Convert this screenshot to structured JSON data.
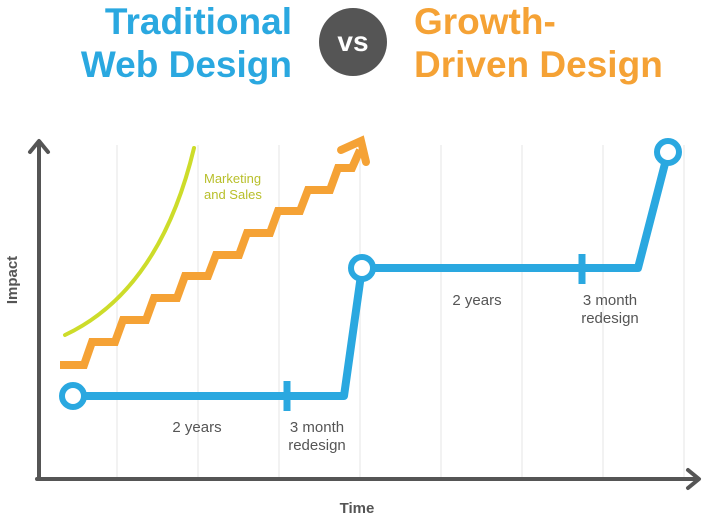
{
  "titles": {
    "left_line1": "Traditional",
    "left_line2": "Web Design",
    "vs": "vs",
    "right_line1": "Growth-",
    "right_line2": "Driven Design"
  },
  "axes": {
    "x_label": "Time",
    "y_label": "Impact"
  },
  "annotations": {
    "marketing_line1": "Marketing",
    "marketing_line2": "and Sales",
    "years_1": "2 years",
    "redesign_1_line1": "3 month",
    "redesign_1_line2": "redesign",
    "years_2": "2 years",
    "redesign_2_line1": "3 month",
    "redesign_2_line2": "redesign"
  },
  "colors": {
    "traditional": "#2aa8e0",
    "growth": "#f5a235",
    "marketing": "#cddc2a",
    "axis": "#555555",
    "grid": "#eeeeee",
    "text": "#555555"
  }
}
